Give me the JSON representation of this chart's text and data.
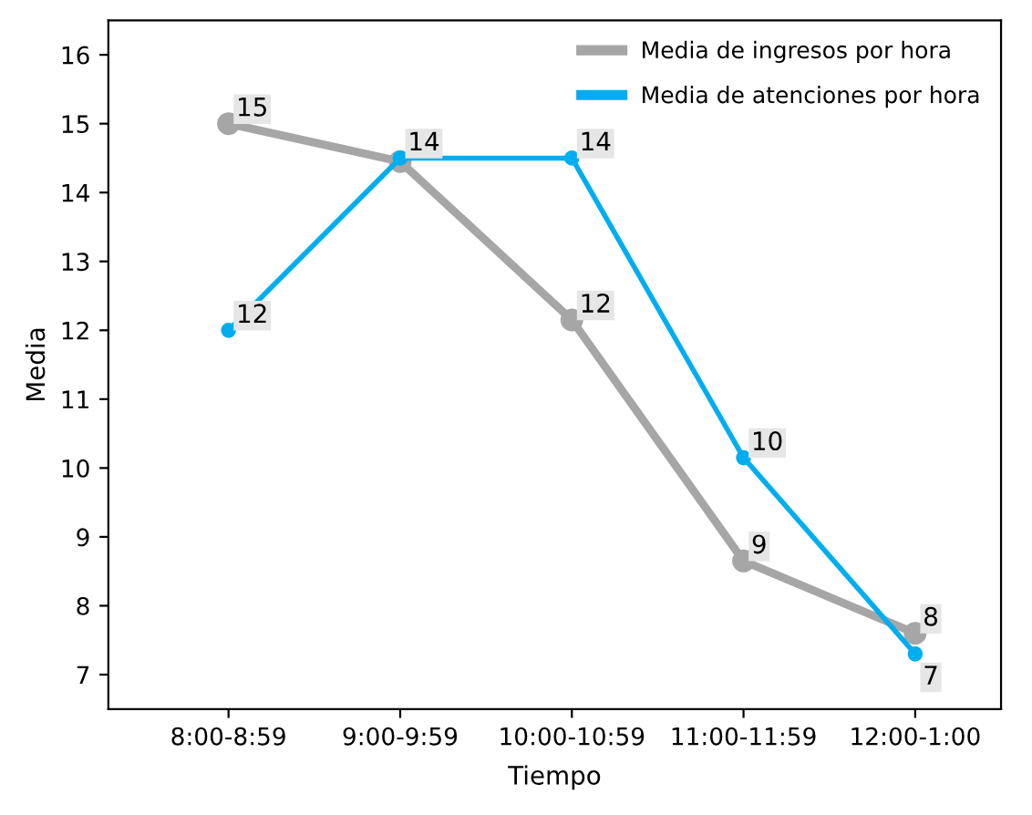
{
  "chart_data": {
    "type": "line",
    "xlabel": "Tiempo",
    "ylabel": "Media",
    "categories": [
      "8:00-8:59",
      "9:00-9:59",
      "10:00-10:59",
      "11:00-11:59",
      "12:00-1:00"
    ],
    "series": [
      {
        "name": "Media de ingresos por hora",
        "color": "#a6a6a6",
        "values": [
          15.0,
          14.45,
          12.15,
          8.65,
          7.6
        ],
        "value_labels": [
          "15",
          null,
          "12",
          "9",
          "8"
        ]
      },
      {
        "name": "Media de atenciones por hora",
        "color": "#00aeef",
        "values": [
          12.0,
          14.5,
          14.5,
          10.15,
          7.3
        ],
        "value_labels": [
          "12",
          "14",
          "14",
          "10",
          "7"
        ]
      }
    ],
    "ylim": [
      6.5,
      16.5
    ],
    "yticks": [
      7,
      8,
      9,
      10,
      11,
      12,
      13,
      14,
      15,
      16
    ],
    "grid": false,
    "legend": "top right",
    "marker": "circle",
    "line_style": "solid"
  }
}
